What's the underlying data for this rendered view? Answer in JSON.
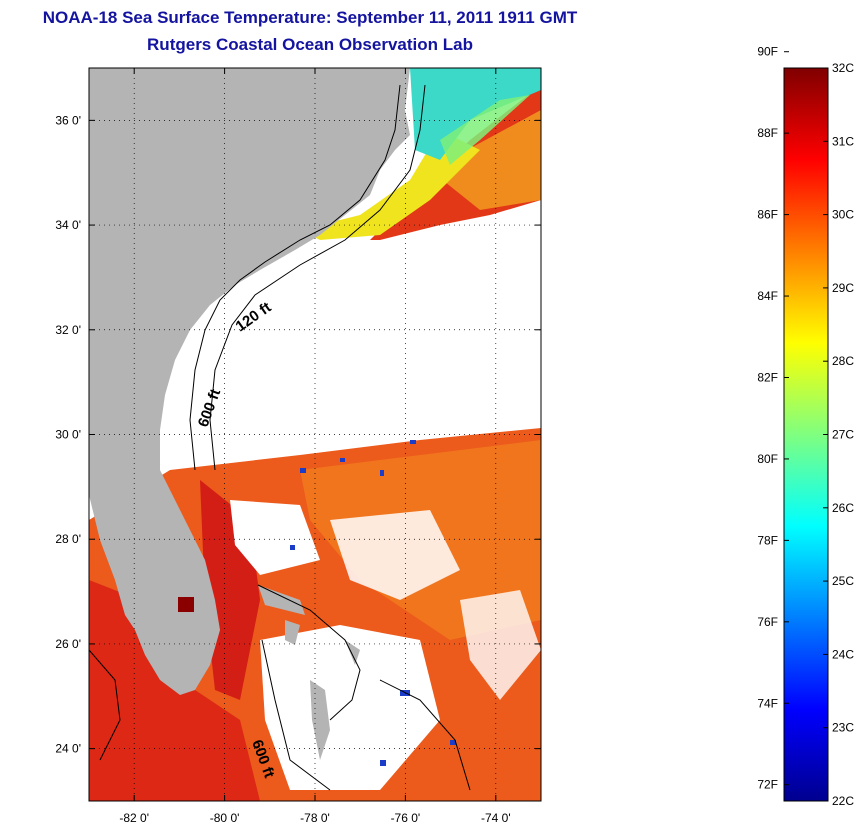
{
  "header": {
    "title": "NOAA-18 Sea Surface Temperature:  September 11, 2011 1911 GMT",
    "subtitle": "Rutgers Coastal Ocean Observation Lab"
  },
  "map": {
    "lon_range": [
      -83,
      -73
    ],
    "lat_range": [
      23,
      37
    ],
    "lon_ticks": [
      {
        "value": -82,
        "label": "-82 0'"
      },
      {
        "value": -80,
        "label": "-80 0'"
      },
      {
        "value": -78,
        "label": "-78 0'"
      },
      {
        "value": -76,
        "label": "-76 0'"
      },
      {
        "value": -74,
        "label": "-74 0'"
      }
    ],
    "lat_ticks": [
      {
        "value": 24,
        "label": "24 0'"
      },
      {
        "value": 26,
        "label": "26 0'"
      },
      {
        "value": 28,
        "label": "28 0'"
      },
      {
        "value": 30,
        "label": "30 0'"
      },
      {
        "value": 32,
        "label": "32 0'"
      },
      {
        "value": 34,
        "label": "34 0'"
      },
      {
        "value": 36,
        "label": "36 0'"
      }
    ],
    "grid": "dotted",
    "contour_labels": [
      {
        "text": "120 ft"
      },
      {
        "text": "600 ft"
      },
      {
        "text": "600 ft"
      }
    ],
    "colors": {
      "land": "#b4b4b4",
      "no_data": "#ffffff",
      "warm": "#e8401a",
      "hot": "#c81414",
      "mid": "#f07a1e",
      "cool": "#40e0d0"
    }
  },
  "colorbar": {
    "colormap": "jet",
    "min_c": 22,
    "max_c": 32,
    "labels_f": [
      "90F",
      "88F",
      "86F",
      "84F",
      "82F",
      "80F",
      "78F",
      "76F",
      "74F",
      "72F"
    ],
    "labels_c": [
      "32C",
      "31C",
      "30C",
      "29C",
      "28C",
      "27C",
      "26C",
      "25C",
      "24C",
      "23C",
      "22C"
    ]
  }
}
